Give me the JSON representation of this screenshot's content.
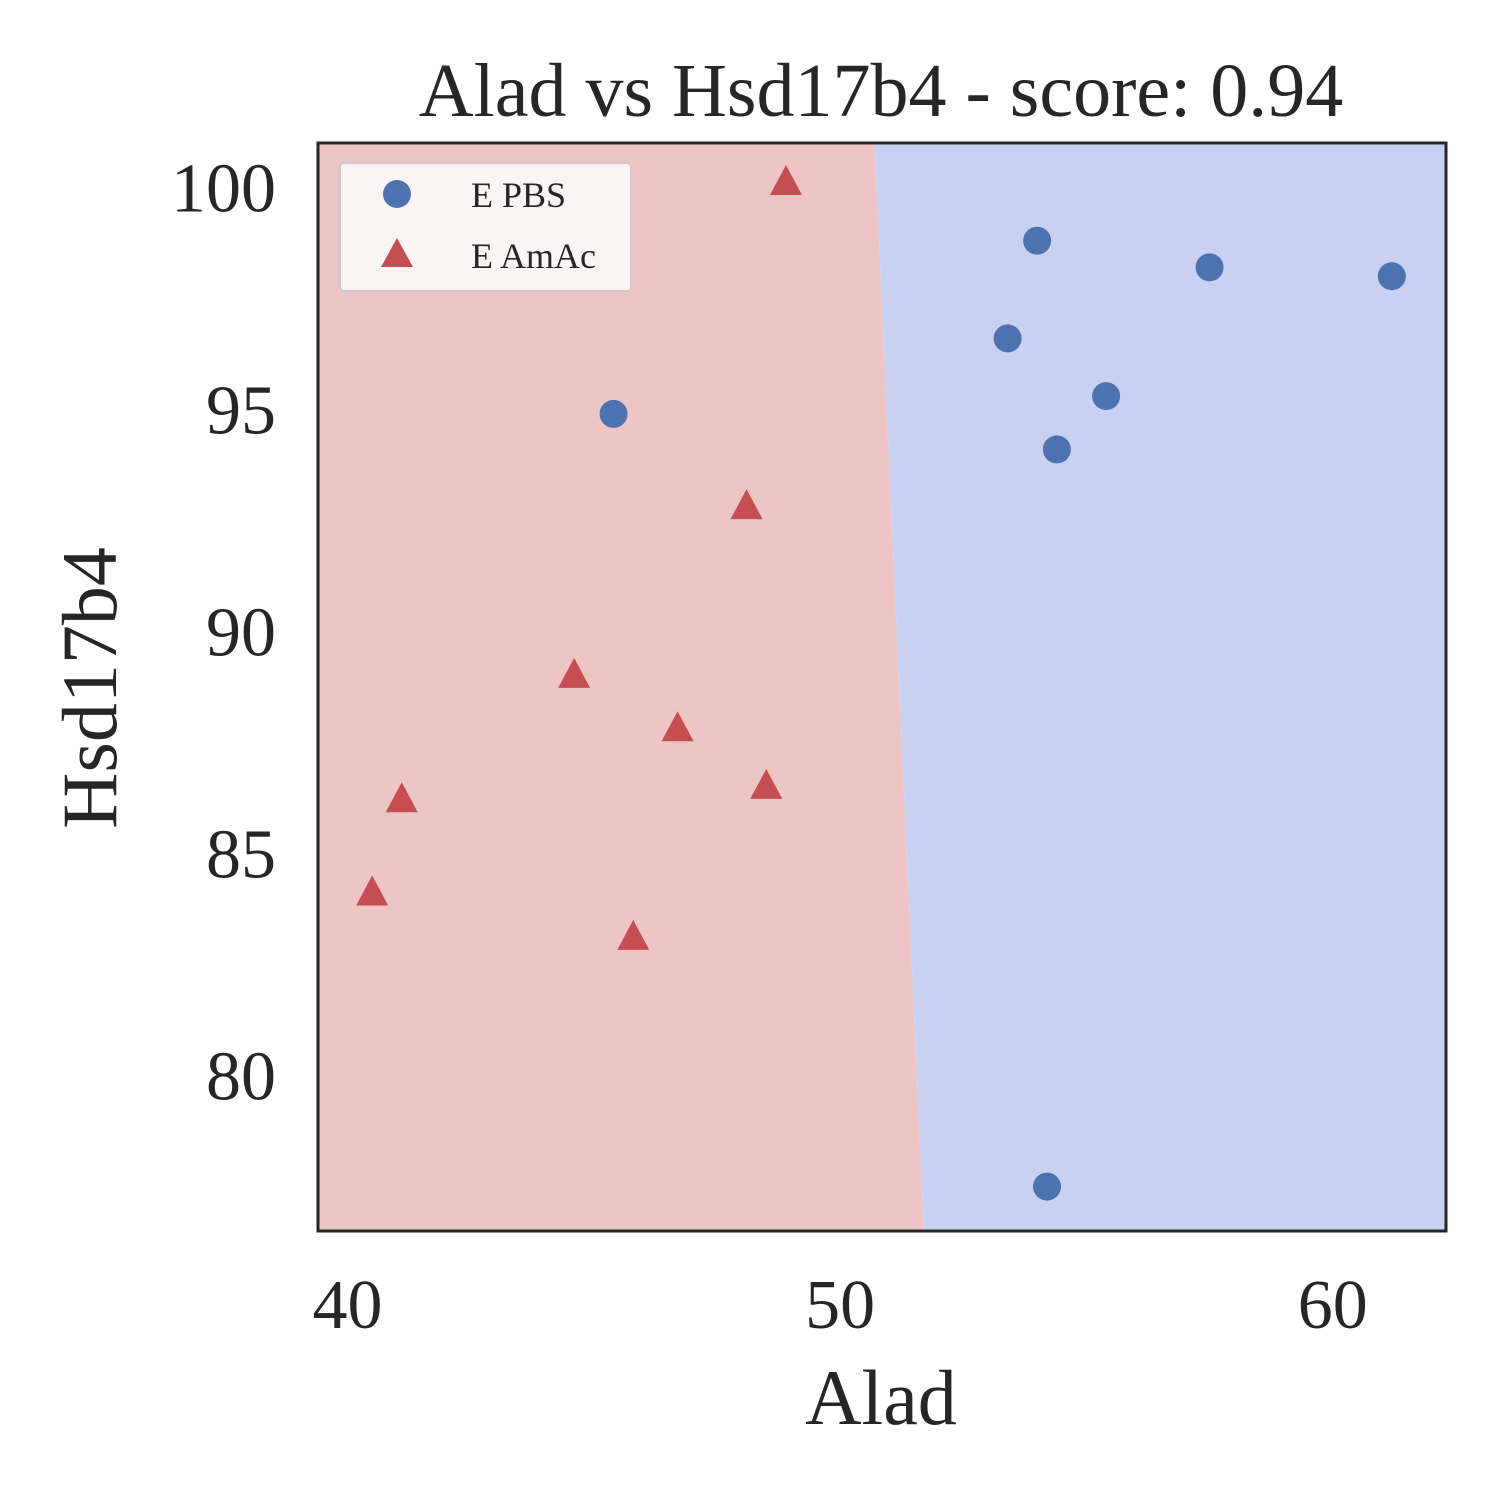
{
  "chart_data": {
    "type": "scatter",
    "title": "Alad vs Hsd17b4 - score: 0.94",
    "xlabel": "Alad",
    "ylabel": "Hsd17b4",
    "xlim": [
      39.4,
      62.3
    ],
    "ylim": [
      76.5,
      101.0
    ],
    "xticks": [
      40,
      50,
      60
    ],
    "yticks": [
      80,
      85,
      90,
      95,
      100
    ],
    "grid": false,
    "legend_position": "top-left",
    "decision_boundary": {
      "points": [
        [
          50.7,
          101.0
        ],
        [
          51.7,
          76.5
        ]
      ],
      "left_region_class": "E AmAc",
      "right_region_class": "E PBS"
    },
    "series": [
      {
        "name": "E PBS",
        "marker": "circle",
        "color": "#4c72b0",
        "region_color": "#c8d1f2",
        "points": [
          {
            "x": 45.4,
            "y": 94.9
          },
          {
            "x": 53.4,
            "y": 96.6
          },
          {
            "x": 54.0,
            "y": 98.8
          },
          {
            "x": 54.4,
            "y": 94.1
          },
          {
            "x": 55.4,
            "y": 95.3
          },
          {
            "x": 57.5,
            "y": 98.2
          },
          {
            "x": 61.2,
            "y": 98.0
          },
          {
            "x": 54.2,
            "y": 77.5
          }
        ]
      },
      {
        "name": "E AmAc",
        "marker": "triangle",
        "color": "#c44e52",
        "region_color": "#edc5c5",
        "points": [
          {
            "x": 48.9,
            "y": 100.1
          },
          {
            "x": 48.1,
            "y": 92.8
          },
          {
            "x": 44.6,
            "y": 89.0
          },
          {
            "x": 46.7,
            "y": 87.8
          },
          {
            "x": 48.5,
            "y": 86.5
          },
          {
            "x": 41.1,
            "y": 86.2
          },
          {
            "x": 40.5,
            "y": 84.1
          },
          {
            "x": 45.8,
            "y": 83.1
          }
        ]
      }
    ]
  }
}
